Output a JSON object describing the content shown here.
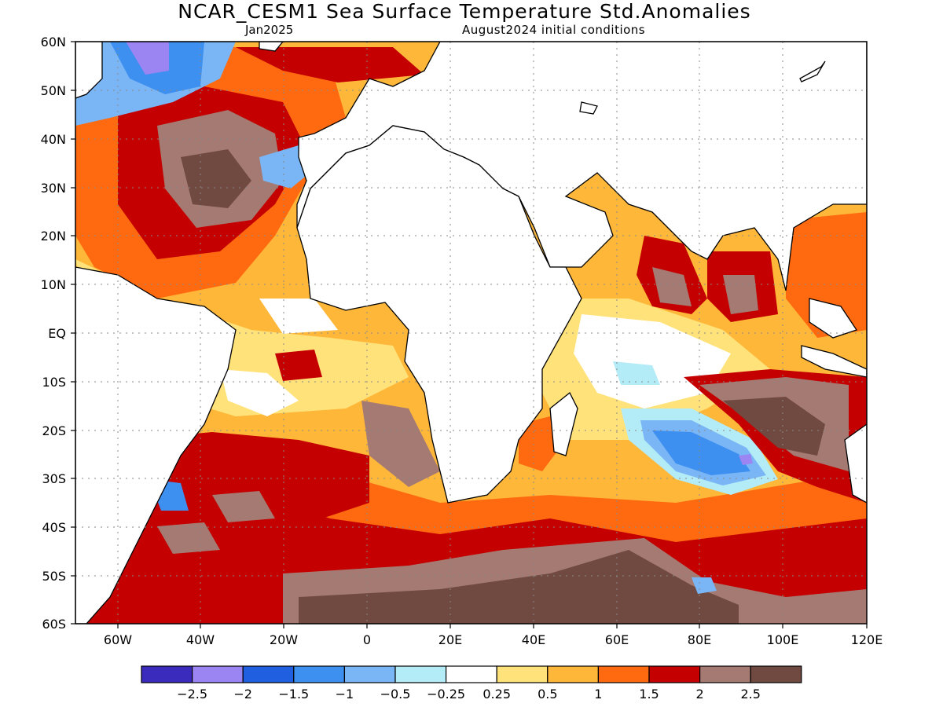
{
  "header": {
    "title": "NCAR_CESM1 Sea Surface Temperature Std.Anomalies",
    "target_month": "Jan2025",
    "initial_conditions": "August2024 initial conditions"
  },
  "axes": {
    "lat_labels": [
      "60N",
      "50N",
      "40N",
      "30N",
      "20N",
      "10N",
      "EQ",
      "10S",
      "20S",
      "30S",
      "40S",
      "50S",
      "60S"
    ],
    "lon_labels": [
      "60W",
      "40W",
      "20W",
      "0",
      "20E",
      "40E",
      "60E",
      "80E",
      "100E",
      "120E"
    ]
  },
  "legend": {
    "colors": [
      "#3a2bbd",
      "#9b85f2",
      "#1f5fe0",
      "#3d8ff0",
      "#7ab6f5",
      "#b3ecf7",
      "#ffffff",
      "#ffe27a",
      "#ffb73a",
      "#ff6a10",
      "#c40000",
      "#a57a72",
      "#704a40"
    ],
    "labels": [
      "-2.5",
      "-2",
      "-1.5",
      "-1",
      "-0.5",
      "-0.25",
      "0.25",
      "0.5",
      "1",
      "1.5",
      "2",
      "2.5"
    ]
  }
}
